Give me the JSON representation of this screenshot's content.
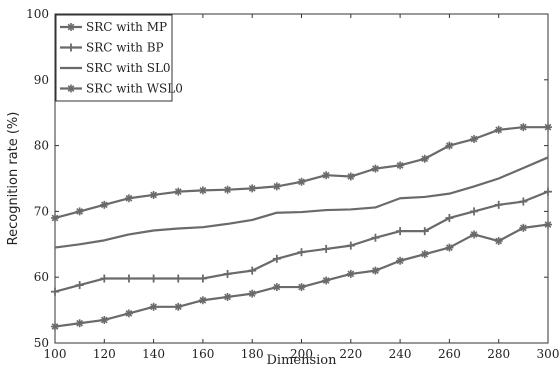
{
  "chart_data": {
    "type": "line",
    "xlabel": "Dimension",
    "ylabel": "Recognition rate (%)",
    "xlim": [
      100,
      300
    ],
    "ylim": [
      50,
      100
    ],
    "xticks": [
      100,
      120,
      140,
      160,
      180,
      200,
      220,
      240,
      260,
      280,
      300
    ],
    "yticks": [
      50,
      60,
      70,
      80,
      90,
      100
    ],
    "grid": false,
    "legend_position": "top-left",
    "line_color": "#6a6a6a",
    "x": [
      100,
      110,
      120,
      130,
      140,
      150,
      160,
      170,
      180,
      190,
      200,
      210,
      220,
      230,
      240,
      250,
      260,
      270,
      280,
      290,
      300
    ],
    "series": [
      {
        "name": "SRC with MP",
        "marker": "star",
        "values": [
          52.5,
          53,
          53.5,
          54.5,
          55.5,
          55.5,
          56.5,
          57,
          57.5,
          58.5,
          58.5,
          59.5,
          60.5,
          61,
          62.5,
          63.5,
          64.5,
          66.5,
          65.5,
          67.5,
          68
        ]
      },
      {
        "name": "SRC with BP",
        "marker": "plus",
        "values": [
          57.8,
          58.8,
          59.8,
          59.8,
          59.8,
          59.8,
          59.8,
          60.5,
          61,
          62.8,
          63.8,
          64.3,
          64.8,
          66,
          67,
          67,
          69,
          70,
          71,
          71.5,
          73
        ]
      },
      {
        "name": "SRC with SL0",
        "marker": "none",
        "values": [
          64.5,
          65,
          65.6,
          66.5,
          67.1,
          67.4,
          67.6,
          68.1,
          68.7,
          69.8,
          69.9,
          70.2,
          70.3,
          70.6,
          72,
          72.2,
          72.7,
          73.8,
          75,
          76.6,
          78.2
        ]
      },
      {
        "name": "SRC with WSL0",
        "marker": "star",
        "values": [
          69,
          70,
          71,
          72,
          72.5,
          73,
          73.2,
          73.3,
          73.5,
          73.8,
          74.5,
          75.5,
          75.3,
          76.5,
          77,
          78,
          80,
          81,
          82.4,
          82.8,
          82.8
        ]
      }
    ]
  }
}
